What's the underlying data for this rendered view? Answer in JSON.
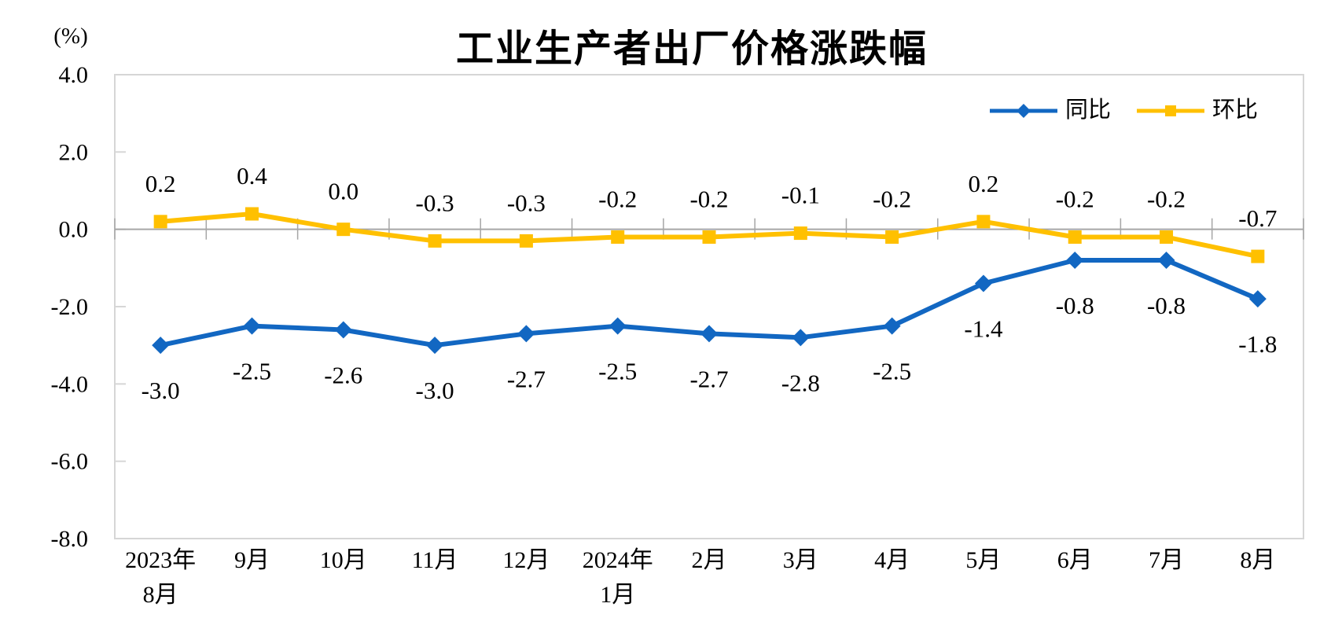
{
  "chart_data": {
    "type": "line",
    "title": "工业生产者出厂价格涨跌幅",
    "unit_label": "(%)",
    "categories": [
      [
        "2023年",
        "8月"
      ],
      [
        "9月"
      ],
      [
        "10月"
      ],
      [
        "11月"
      ],
      [
        "12月"
      ],
      [
        "2024年",
        "1月"
      ],
      [
        "2月"
      ],
      [
        "3月"
      ],
      [
        "4月"
      ],
      [
        "5月"
      ],
      [
        "6月"
      ],
      [
        "7月"
      ],
      [
        "8月"
      ]
    ],
    "series": [
      {
        "name": "同比",
        "color": "#1267C2",
        "marker": "diamond",
        "label_position": "below",
        "values": [
          -3.0,
          -2.5,
          -2.6,
          -3.0,
          -2.7,
          -2.5,
          -2.7,
          -2.8,
          -2.5,
          -1.4,
          -0.8,
          -0.8,
          -1.8
        ]
      },
      {
        "name": "环比",
        "color": "#FFC000",
        "marker": "square",
        "label_position": "above",
        "values": [
          0.2,
          0.4,
          0.0,
          -0.3,
          -0.3,
          -0.2,
          -0.2,
          -0.1,
          -0.2,
          0.2,
          -0.2,
          -0.2,
          -0.7
        ]
      }
    ],
    "ylim": [
      -8,
      4
    ],
    "yticks": [
      4.0,
      2.0,
      0.0,
      -2.0,
      -4.0,
      -6.0,
      -8.0
    ],
    "grid": false,
    "legend_position": "top-right",
    "axis_color": "#d6d6d6",
    "zero_line_color": "#a6a6a6",
    "background_color": "#ffffff"
  }
}
